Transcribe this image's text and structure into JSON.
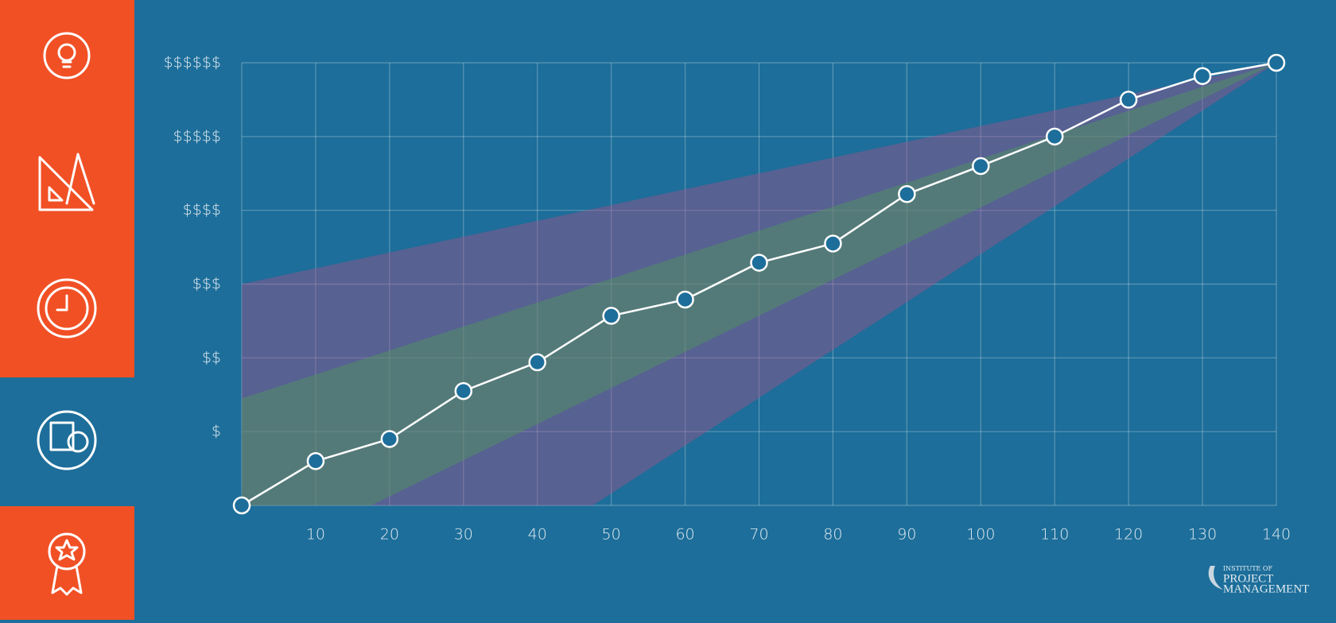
{
  "chart_data": {
    "type": "line",
    "x": [
      0,
      10,
      20,
      30,
      40,
      50,
      60,
      70,
      80,
      90,
      100,
      110,
      120,
      130,
      140
    ],
    "series": [
      {
        "color": "#ffffff",
        "values": [
          0,
          0.6,
          0.9,
          1.55,
          1.94,
          2.57,
          2.79,
          3.29,
          3.55,
          4.22,
          4.6,
          5.0,
          5.5,
          5.82,
          6
        ]
      }
    ],
    "bands": [
      {
        "color": "#a0528a",
        "upper_x": [
          0,
          140
        ],
        "upper_y": [
          3,
          6
        ],
        "lower_x": [
          0,
          47.5,
          140
        ],
        "lower_y": [
          0,
          0,
          6
        ]
      },
      {
        "color": "#4f9a5a",
        "upper_x": [
          0,
          140
        ],
        "upper_y": [
          1.45,
          6
        ],
        "lower_x": [
          0,
          17.5,
          140
        ],
        "lower_y": [
          0,
          0,
          6
        ]
      }
    ],
    "xlim": [
      0,
      140
    ],
    "xticks": [
      {
        "value": 0,
        "label": null
      },
      10,
      20,
      30,
      40,
      50,
      60,
      70,
      80,
      90,
      100,
      110,
      120,
      130,
      140
    ],
    "ylim": [
      0,
      6
    ],
    "yticks": [
      {
        "value": 0,
        "label": null
      },
      {
        "value": 1,
        "label": "$"
      },
      {
        "value": 2,
        "label": "$$"
      },
      {
        "value": 3,
        "label": "$$$"
      },
      {
        "value": 4,
        "label": "$$$$"
      },
      {
        "value": 5,
        "label": "$$$$$"
      },
      {
        "value": 6,
        "label": "$$$$$$"
      }
    ],
    "grid": true
  },
  "logo": {
    "line1": "INSTITUTE OF",
    "line2": "PROJECT",
    "line3": "MANAGEMENT"
  }
}
